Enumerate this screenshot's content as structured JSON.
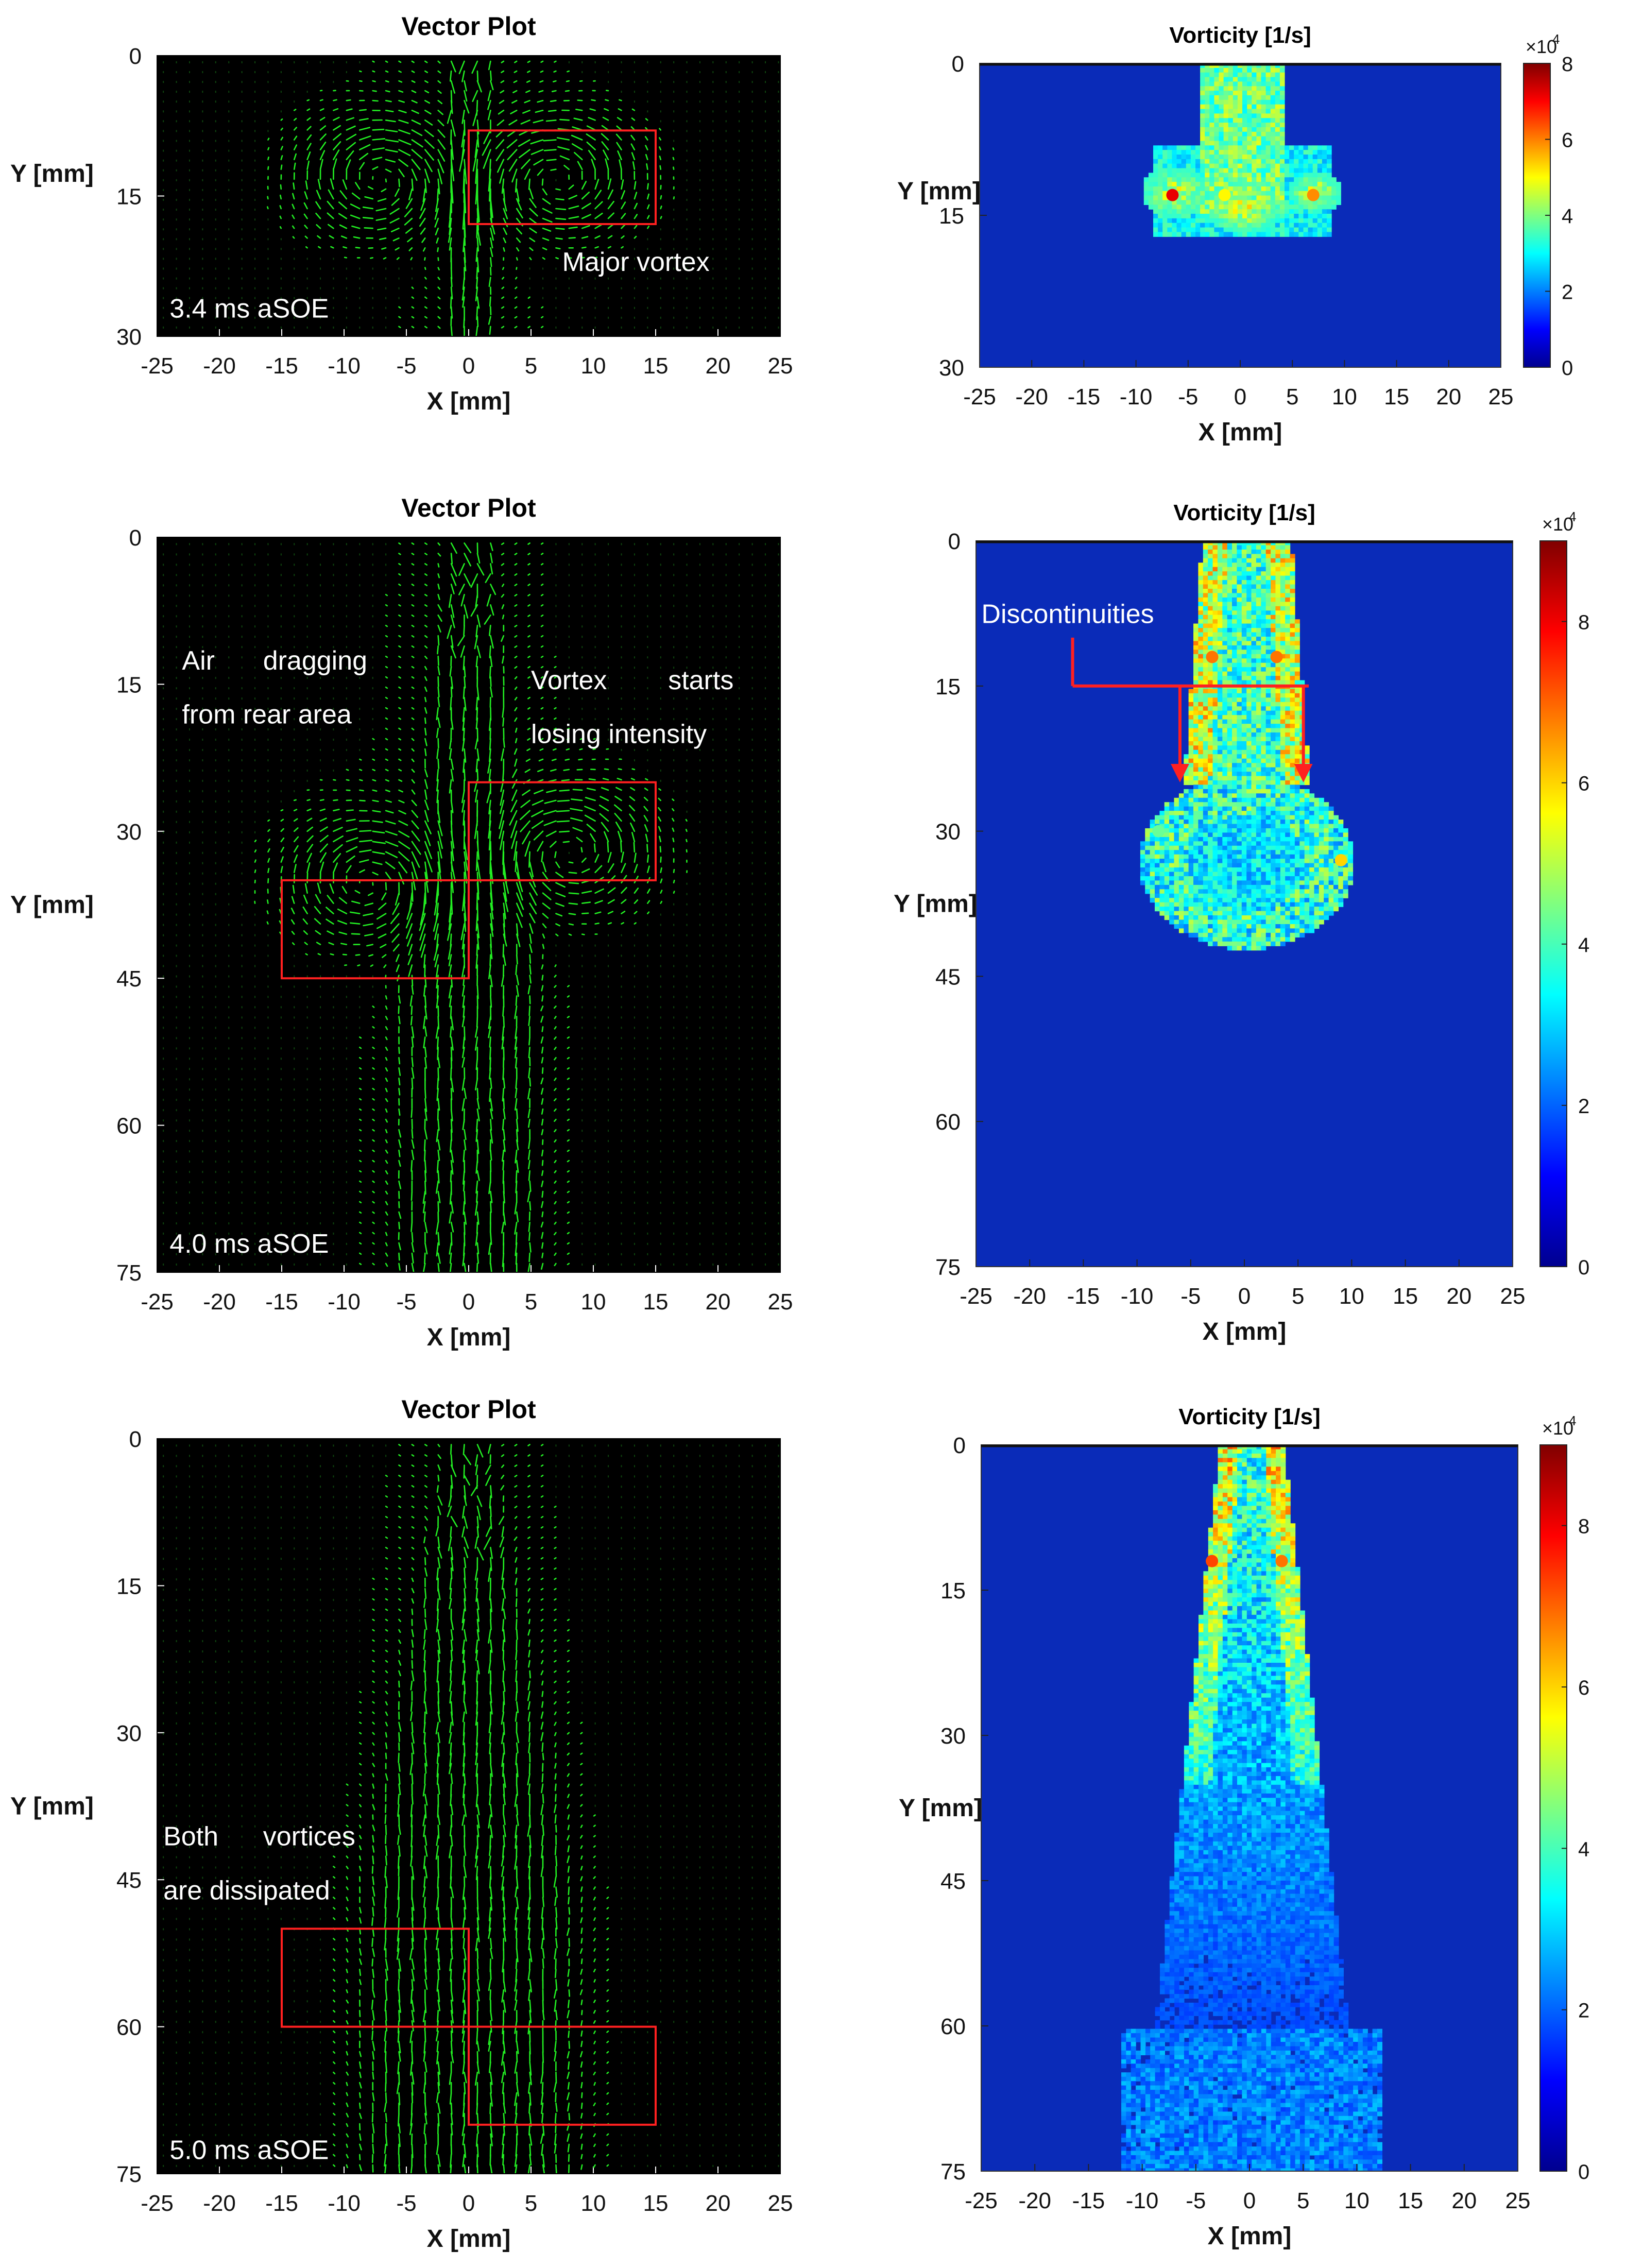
{
  "colors": {
    "vector": "#22ee22",
    "annotation_box": "#ff2020",
    "vorticity_background": "#0a2bb8",
    "colormap": "jet"
  },
  "colorbar": {
    "multiplier": "×10",
    "exponent": "4"
  },
  "chart_data": [
    {
      "id": "p1",
      "type": "vector",
      "title": "Vector Plot",
      "xlabel": "X [mm]",
      "ylabel": "Y [mm]",
      "xlim": [
        -25,
        25
      ],
      "ylim": [
        0,
        30
      ],
      "xticks": [
        -25,
        -20,
        -15,
        -10,
        -5,
        0,
        5,
        10,
        15,
        20,
        25
      ],
      "yticks": [
        0,
        15,
        30
      ],
      "jet_halfwidth_mm": [
        2,
        2
      ],
      "vortices": [
        {
          "x": -7,
          "y": 13
        },
        {
          "x": 7,
          "y": 13
        }
      ],
      "boxes": [
        {
          "x0": 0,
          "x1": 15,
          "y0": 8,
          "y1": 18
        }
      ],
      "annotations": [
        {
          "text": "Major vortex",
          "x": 7.5,
          "y": 23
        },
        {
          "text": "3.4 ms aSOE",
          "x": -24,
          "y": 28
        }
      ]
    },
    {
      "id": "p2",
      "type": "heatmap",
      "title": "Vorticity [1/s]",
      "xlabel": "X [mm]",
      "ylabel": "Y [mm]",
      "xlim": [
        -25,
        25
      ],
      "ylim": [
        0,
        30
      ],
      "xticks": [
        -25,
        -20,
        -15,
        -10,
        -5,
        0,
        5,
        10,
        15,
        20,
        25
      ],
      "yticks": [
        0,
        15,
        30
      ],
      "colorbar_ticks": [
        0,
        2,
        4,
        6,
        8
      ],
      "clim": [
        0,
        8
      ],
      "hotspots": [
        {
          "x": -6.5,
          "y": 13,
          "v": 7.5
        },
        {
          "x": 7,
          "y": 13,
          "v": 6
        },
        {
          "x": -1.5,
          "y": 13,
          "v": 5
        }
      ]
    },
    {
      "id": "p3",
      "type": "vector",
      "title": "Vector Plot",
      "xlabel": "X [mm]",
      "ylabel": "Y [mm]",
      "xlim": [
        -25,
        25
      ],
      "ylim": [
        0,
        75
      ],
      "xticks": [
        -25,
        -20,
        -15,
        -10,
        -5,
        0,
        5,
        10,
        15,
        20,
        25
      ],
      "yticks": [
        0,
        15,
        30,
        45,
        60,
        75
      ],
      "jet_halfwidth_mm": [
        2,
        6
      ],
      "vortices": [
        {
          "x": -8,
          "y": 35
        },
        {
          "x": 8,
          "y": 32
        }
      ],
      "boxes": [
        {
          "x0": -15,
          "x1": 0,
          "y0": 35,
          "y1": 45
        },
        {
          "x0": 0,
          "x1": 15,
          "y0": 25,
          "y1": 35
        }
      ],
      "annotations": [
        {
          "text": "Air",
          "x": -23,
          "y": 13.5
        },
        {
          "text": "dragging",
          "x": -16.5,
          "y": 13.5
        },
        {
          "text": "from rear area",
          "x": -23,
          "y": 19
        },
        {
          "text": "Vortex",
          "x": 5,
          "y": 15.5
        },
        {
          "text": "starts",
          "x": 16,
          "y": 15.5
        },
        {
          "text": "losing intensity",
          "x": 5,
          "y": 21
        },
        {
          "text": "4.0 ms aSOE",
          "x": -24,
          "y": 73
        }
      ]
    },
    {
      "id": "p4",
      "type": "heatmap",
      "title": "Vorticity [1/s]",
      "xlabel": "X [mm]",
      "ylabel": "Y [mm]",
      "xlim": [
        -25,
        25
      ],
      "ylim": [
        0,
        75
      ],
      "xticks": [
        -25,
        -20,
        -15,
        -10,
        -5,
        0,
        5,
        10,
        15,
        20,
        25
      ],
      "yticks": [
        0,
        15,
        30,
        45,
        60,
        75
      ],
      "colorbar_ticks": [
        0,
        2,
        4,
        6,
        8
      ],
      "clim": [
        0,
        9
      ],
      "hotspots": [
        {
          "x": -3,
          "y": 12,
          "v": 7
        },
        {
          "x": 3,
          "y": 12,
          "v": 7
        },
        {
          "x": 9,
          "y": 33,
          "v": 6
        },
        {
          "x": -8,
          "y": 30,
          "v": 4
        }
      ],
      "annotations": [
        {
          "text": "Discontinuities",
          "x": -24.5,
          "y": 8.5
        }
      ],
      "arrow_lines": {
        "bracket_x": [
          -16,
          6
        ],
        "bracket_y": 15,
        "stem_y": [
          10,
          15
        ],
        "arrows": [
          {
            "x": -6,
            "y0": 15,
            "y1": 24
          },
          {
            "x": 5.5,
            "y0": 15,
            "y1": 24
          }
        ]
      }
    },
    {
      "id": "p5",
      "type": "vector",
      "title": "Vector Plot",
      "xlabel": "X [mm]",
      "ylabel": "Y [mm]",
      "xlim": [
        -25,
        25
      ],
      "ylim": [
        0,
        75
      ],
      "xticks": [
        -25,
        -20,
        -15,
        -10,
        -5,
        0,
        5,
        10,
        15,
        20,
        25
      ],
      "yticks": [
        0,
        15,
        30,
        45,
        60,
        75
      ],
      "jet_halfwidth_mm": [
        2,
        9
      ],
      "vortices": [],
      "boxes": [
        {
          "x0": -15,
          "x1": 0,
          "y0": 50,
          "y1": 60
        },
        {
          "x0": 0,
          "x1": 15,
          "y0": 60,
          "y1": 70
        }
      ],
      "annotations": [
        {
          "text": "Both",
          "x": -24.5,
          "y": 41.5
        },
        {
          "text": "vortices",
          "x": -16.5,
          "y": 41.5
        },
        {
          "text": "are dissipated",
          "x": -24.5,
          "y": 47
        },
        {
          "text": "5.0 ms aSOE",
          "x": -24,
          "y": 73.5
        }
      ]
    },
    {
      "id": "p6",
      "type": "heatmap",
      "title": "Vorticity [1/s]",
      "xlabel": "X [mm]",
      "ylabel": "Y [mm]",
      "xlim": [
        -25,
        25
      ],
      "ylim": [
        0,
        75
      ],
      "xticks": [
        -25,
        -20,
        -15,
        -10,
        -5,
        0,
        5,
        10,
        15,
        20,
        25
      ],
      "yticks": [
        0,
        15,
        30,
        45,
        60,
        75
      ],
      "colorbar_ticks": [
        0,
        2,
        4,
        6,
        8
      ],
      "clim": [
        0,
        9
      ],
      "hotspots": [
        {
          "x": -3.5,
          "y": 12,
          "v": 7.5
        },
        {
          "x": 3,
          "y": 12,
          "v": 7
        }
      ]
    }
  ]
}
